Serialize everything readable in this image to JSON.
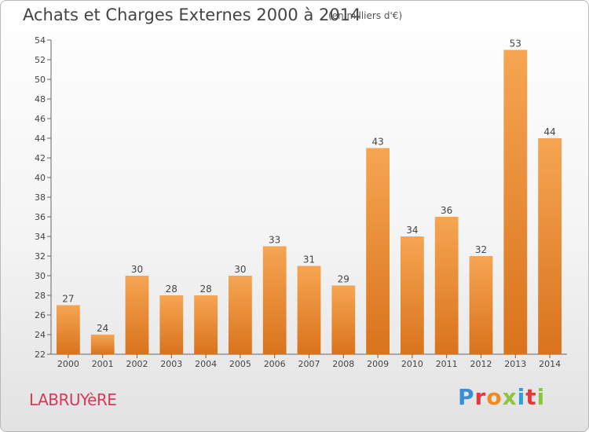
{
  "header": {
    "title": "Achats et Charges Externes 2000 à 2014",
    "subtitle": "(en milliers d'€)"
  },
  "footer": {
    "commune": "LABRUYèRE",
    "logo_text": "Proxiti"
  },
  "colors": {
    "bar_top": "#f6a552",
    "bar_bottom": "#d9731c",
    "logo": [
      "#3a8fd4",
      "#e8373a",
      "#f08a1c",
      "#8cc63f",
      "#2f9ee0",
      "#e8373a",
      "#8cc63f"
    ]
  },
  "chart_data": {
    "type": "bar",
    "categories": [
      "2000",
      "2001",
      "2002",
      "2003",
      "2004",
      "2005",
      "2006",
      "2007",
      "2008",
      "2009",
      "2010",
      "2011",
      "2012",
      "2013",
      "2014"
    ],
    "values": [
      27,
      24,
      30,
      28,
      28,
      30,
      33,
      31,
      29,
      43,
      34,
      36,
      32,
      53,
      44
    ],
    "title": "Achats et Charges Externes 2000 à 2014",
    "xlabel": "",
    "ylabel": "",
    "ylim": [
      22,
      54
    ],
    "yticks": [
      22,
      24,
      26,
      28,
      30,
      32,
      34,
      36,
      38,
      40,
      42,
      44,
      46,
      48,
      50,
      52,
      54
    ],
    "grid": false,
    "data_labels": true
  }
}
